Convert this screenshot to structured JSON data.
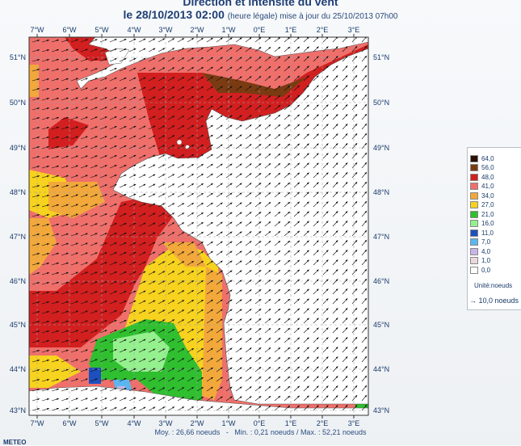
{
  "title": {
    "line1": "Direction et intensité du vent",
    "line2_date": "le 28/10/2013 02:00",
    "line2_note": "(heure légale) mise à jour du 25/10/2013 07h00"
  },
  "axes": {
    "lon_labels": [
      "7°W",
      "6°W",
      "5°W",
      "4°W",
      "3°W",
      "2°W",
      "1°W",
      "0°E",
      "1°E",
      "2°E",
      "3°E"
    ],
    "lat_labels": [
      "51°N",
      "50°N",
      "49°N",
      "48°N",
      "47°N",
      "46°N",
      "45°N",
      "44°N",
      "43°N"
    ]
  },
  "legend": {
    "levels": [
      {
        "label": "64,0",
        "color": "#2a0f05"
      },
      {
        "label": "56,0",
        "color": "#7a3b12"
      },
      {
        "label": "48,0",
        "color": "#d21f1f"
      },
      {
        "label": "41,0",
        "color": "#ef6f6b"
      },
      {
        "label": "34,0",
        "color": "#f2a83a"
      },
      {
        "label": "27,0",
        "color": "#f7d21e"
      },
      {
        "label": "21,0",
        "color": "#2fbf2f"
      },
      {
        "label": "16,0",
        "color": "#95f08e"
      },
      {
        "label": "11,0",
        "color": "#1d4fbf"
      },
      {
        "label": "7,0",
        "color": "#5bb6f0"
      },
      {
        "label": "4,0",
        "color": "#c7b4e8"
      },
      {
        "label": "1,0",
        "color": "#ead8dc"
      },
      {
        "label": "0,0",
        "color": "#ffffff"
      }
    ],
    "unit_text": "Unité:noeuds",
    "reference_text": "→ 10,0 noeuds"
  },
  "stats": {
    "mean": "Moy. : 26,66 noeuds",
    "minmax": "Min. : 0,21 noeuds / Max. : 52,21 noeuds"
  },
  "footer": {
    "logo_text": "METEO"
  }
}
